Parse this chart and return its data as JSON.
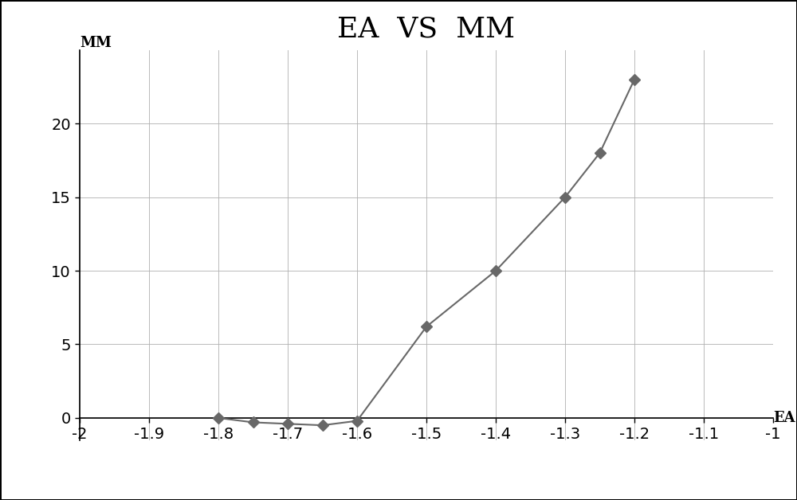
{
  "title": "EA  VS  MM",
  "xlabel": "EA",
  "ylabel": "MM",
  "x_data": [
    -1.8,
    -1.75,
    -1.7,
    -1.65,
    -1.6,
    -1.5,
    -1.4,
    -1.3,
    -1.25,
    -1.2
  ],
  "y_data": [
    0.0,
    -0.3,
    -0.4,
    -0.5,
    -0.2,
    6.2,
    10.0,
    15.0,
    18.0,
    23.0
  ],
  "xlim": [
    -2,
    -1
  ],
  "ylim": [
    0,
    25
  ],
  "xticks": [
    -2,
    -1.9,
    -1.8,
    -1.7,
    -1.6,
    -1.5,
    -1.4,
    -1.3,
    -1.2,
    -1.1,
    -1
  ],
  "yticks": [
    0,
    5,
    10,
    15,
    20
  ],
  "line_color": "#686868",
  "marker_color": "#686868",
  "background_color": "#ffffff",
  "grid_color": "#b0b0b0",
  "title_fontsize": 26,
  "axis_label_fontsize": 13,
  "tick_fontsize": 14,
  "marker_style": "D",
  "marker_size": 7,
  "line_width": 1.5
}
